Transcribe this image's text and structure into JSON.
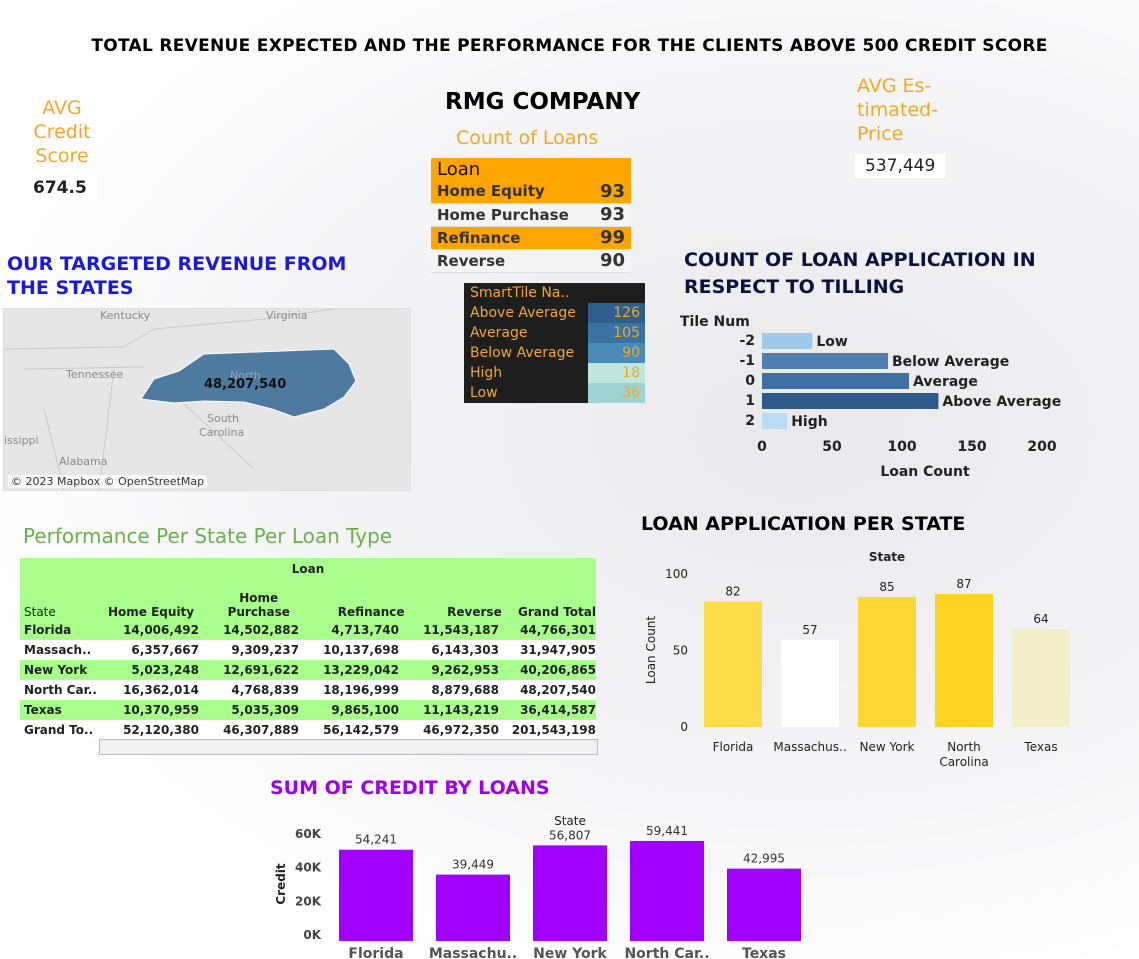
{
  "title": "TOTAL REVENUE EXPECTED AND THE PERFORMANCE FOR THE CLIENTS ABOVE 500 CREDIT SCORE",
  "company": "RMG COMPANY",
  "kpis": {
    "avg_credit_label_1": "AVG",
    "avg_credit_label_2": "Credit",
    "avg_credit_label_3": "Score",
    "avg_credit_value": "674.5",
    "avg_price_label_1": "AVG Es-",
    "avg_price_label_2": "timated-",
    "avg_price_label_3": "Price",
    "avg_price_value": "537,449"
  },
  "count_of_loans": {
    "title": "Count of Loans",
    "header": "Loan",
    "rows": [
      {
        "label": "Home Equity",
        "value": "93"
      },
      {
        "label": "Home Purchase",
        "value": "93"
      },
      {
        "label": "Refinance",
        "value": "99"
      },
      {
        "label": "Reverse",
        "value": "90"
      }
    ]
  },
  "smarttile": {
    "header": "SmartTile Na..",
    "rows": [
      {
        "label": "Above Average",
        "value": "126",
        "color": "#2e5f8c"
      },
      {
        "label": "Average",
        "value": "105",
        "color": "#3a72a3"
      },
      {
        "label": "Below Average",
        "value": "90",
        "color": "#4a8ab8"
      },
      {
        "label": "High",
        "value": "18",
        "color": "#bfe6de"
      },
      {
        "label": "Low",
        "value": "36",
        "color": "#9fd3d3"
      }
    ]
  },
  "map": {
    "title_1": "OUR TARGETED REVENUE FROM",
    "title_2": "THE STATES",
    "value": "48,207,540",
    "labels": {
      "kentucky": "Kentucky",
      "virginia": "Virginia",
      "tennessee": "Tennessee",
      "south_carolina_1": "South",
      "south_carolina_2": "Carolina",
      "mississippi": "issippi",
      "alabama": "Alabama",
      "north": "North"
    },
    "credit": "© 2023 Mapbox © OpenStreetMap"
  },
  "tiling": {
    "title_1": "COUNT OF LOAN APPLICATION IN",
    "title_2": "RESPECT TO TILLING",
    "axis_title": "Tile Num",
    "xlabel": "Loan Count"
  },
  "performance": {
    "title": "Performance Per State Per Loan Type",
    "group_header": "Loan",
    "columns": [
      "State",
      "Home Equity",
      "Home",
      "Purchase",
      "Refinance",
      "Reverse",
      "Grand Total"
    ],
    "rows": [
      {
        "state": "Florida",
        "he": "14,006,492",
        "hp": "14,502,882",
        "rf": "4,713,740",
        "rv": "11,543,187",
        "gt": "44,766,301"
      },
      {
        "state": "Massach..",
        "he": "6,357,667",
        "hp": "9,309,237",
        "rf": "10,137,698",
        "rv": "6,143,303",
        "gt": "31,947,905"
      },
      {
        "state": "New York",
        "he": "5,023,248",
        "hp": "12,691,622",
        "rf": "13,229,042",
        "rv": "9,262,953",
        "gt": "40,206,865"
      },
      {
        "state": "North Car..",
        "he": "16,362,014",
        "hp": "4,768,839",
        "rf": "18,196,999",
        "rv": "8,879,688",
        "gt": "48,207,540"
      },
      {
        "state": "Texas",
        "he": "10,370,959",
        "hp": "5,035,309",
        "rf": "9,865,100",
        "rv": "11,143,219",
        "gt": "36,414,587"
      },
      {
        "state": "Grand To..",
        "he": "52,120,380",
        "hp": "46,307,889",
        "rf": "56,142,579",
        "rv": "46,972,350",
        "gt": "201,543,198"
      }
    ]
  },
  "loan_app_title": "LOAN APPLICATION PER STATE",
  "credit_title": "SUM OF CREDIT BY LOANS",
  "chart_data": [
    {
      "type": "bar",
      "orientation": "horizontal",
      "categories": [
        "-2",
        "-1",
        "0",
        "1",
        "2"
      ],
      "bar_labels": [
        "Low",
        "Below Average",
        "Average",
        "Above Average",
        "High"
      ],
      "values": [
        36,
        90,
        105,
        126,
        18
      ],
      "colors": [
        "#9ec9e8",
        "#4f7fb3",
        "#3f6fa3",
        "#2e5a8c",
        "#b8dcf2"
      ],
      "ylabel": "Tile Num",
      "xlabel": "Loan Count",
      "xticks": [
        0,
        50,
        100,
        150,
        200
      ],
      "xlim": [
        0,
        230
      ]
    },
    {
      "type": "bar",
      "categories": [
        "Florida",
        "Massachus..",
        "New York",
        "North Carolina",
        "Texas"
      ],
      "values": [
        82,
        57,
        85,
        87,
        64
      ],
      "colors": [
        "#fddc4a",
        "#ffffff",
        "#fdd835",
        "#fdd324",
        "#f3edc8"
      ],
      "title": "State",
      "ylabel": "Loan Count",
      "yticks": [
        0,
        50,
        100
      ],
      "ylim": [
        0,
        100
      ]
    },
    {
      "type": "bar",
      "categories": [
        "Florida",
        "Massachu..",
        "New York",
        "North Car..",
        "Texas"
      ],
      "values": [
        54241,
        39449,
        56807,
        59441,
        42995
      ],
      "value_labels": [
        "54,241",
        "39,449",
        "56,807",
        "59,441",
        "42,995"
      ],
      "color": "#a100ff",
      "title": "State",
      "ylabel": "Credit",
      "yticks": [
        "0K",
        "20K",
        "40K",
        "60K"
      ],
      "ylim": [
        0,
        60000
      ]
    }
  ]
}
